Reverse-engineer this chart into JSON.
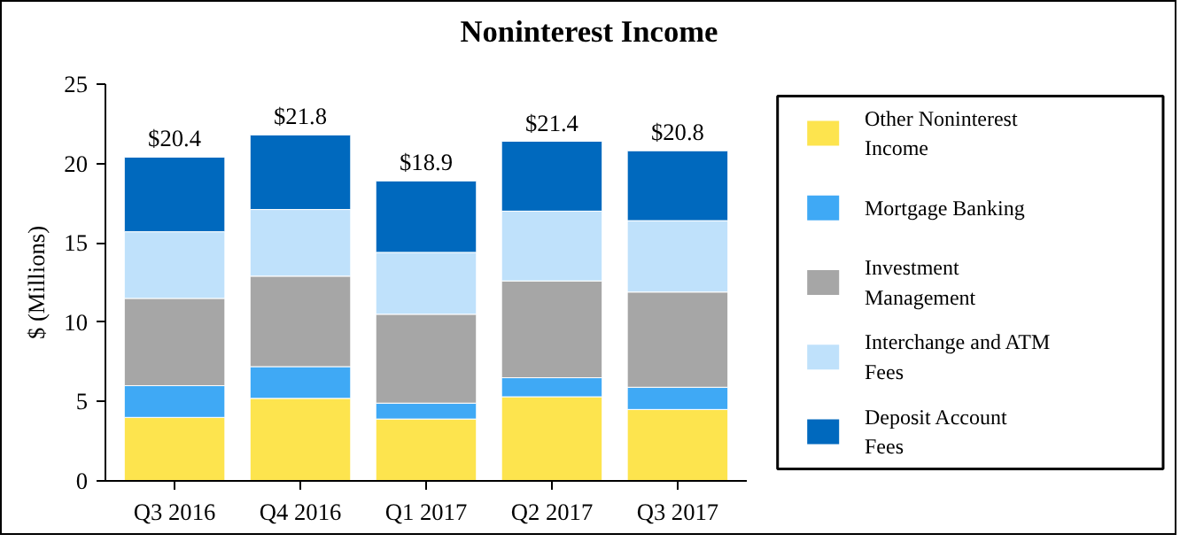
{
  "chart_data": {
    "type": "bar",
    "title": "Noninterest Income",
    "ylabel": "$ (Millions)",
    "categories": [
      "Q3 2016",
      "Q4 2016",
      "Q1 2017",
      "Q2 2017",
      "Q3 2017"
    ],
    "stacked": true,
    "ylim": [
      0,
      25
    ],
    "yticks": [
      0,
      5,
      10,
      15,
      20,
      25
    ],
    "grid": false,
    "legend": "right",
    "totals": [
      "$20.4",
      "$21.8",
      "$18.9",
      "$21.4",
      "$20.8"
    ],
    "series": [
      {
        "name": "Other Noninterest Income",
        "color": "#fde44e",
        "values": [
          4.0,
          5.2,
          3.9,
          5.3,
          4.5
        ]
      },
      {
        "name": "Mortgage Banking",
        "color": "#3fa9f5",
        "values": [
          2.0,
          2.0,
          1.0,
          1.2,
          1.4
        ]
      },
      {
        "name": "Investment Management",
        "color": "#a6a6a6",
        "values": [
          5.5,
          5.7,
          5.6,
          6.1,
          6.0
        ]
      },
      {
        "name": "Interchange and ATM Fees",
        "color": "#bfe1fb",
        "values": [
          4.2,
          4.2,
          3.9,
          4.4,
          4.5
        ]
      },
      {
        "name": "Deposit Account Fees",
        "color": "#0069be",
        "values": [
          4.7,
          4.7,
          4.5,
          4.4,
          4.4
        ]
      }
    ]
  }
}
